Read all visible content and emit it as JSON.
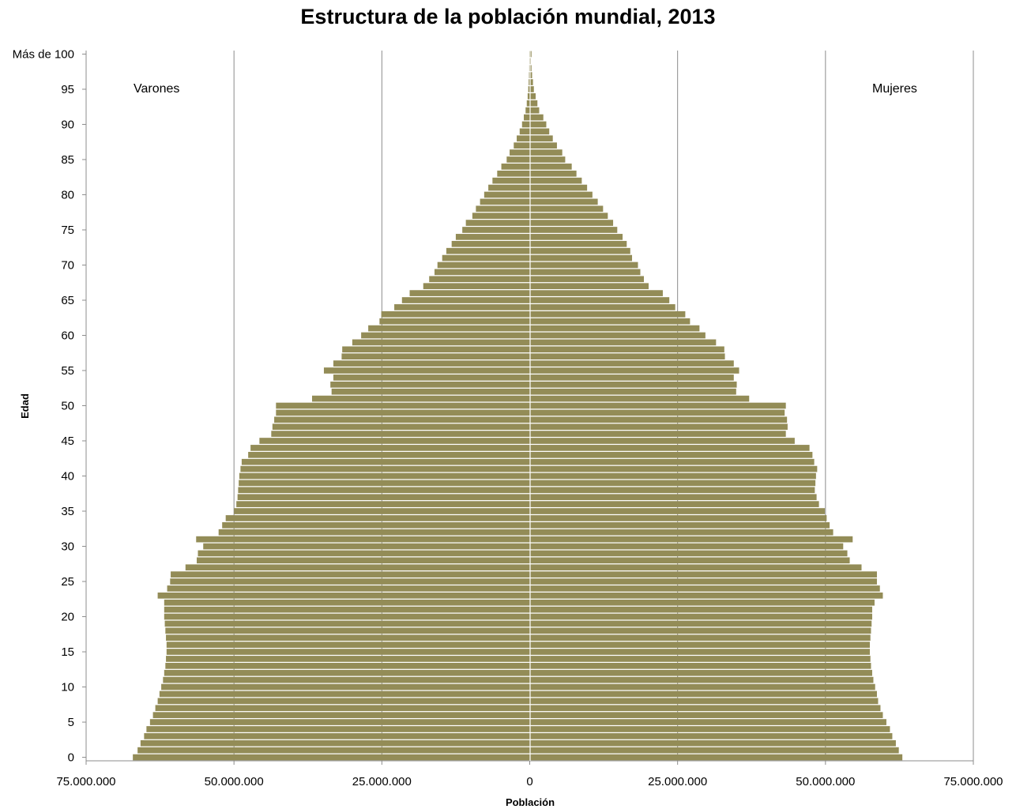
{
  "chart_data": {
    "type": "bar",
    "orientation": "horizontal-population-pyramid",
    "title": "Estructura de la población mundial, 2013",
    "xlabel": "Población",
    "ylabel": "Edad",
    "xlim": [
      -75000000,
      75000000
    ],
    "x_ticks": [
      "75.000.000",
      "50.000.000",
      "25.000.000",
      "0",
      "25.000.000",
      "50.000.000",
      "75.000.000"
    ],
    "y_ticks": [
      "0",
      "5",
      "10",
      "15",
      "20",
      "25",
      "30",
      "35",
      "40",
      "45",
      "50",
      "55",
      "60",
      "65",
      "70",
      "75",
      "80",
      "85",
      "90",
      "95",
      "Más de 100"
    ],
    "side_labels": {
      "left": "Varones",
      "right": "Mujeres"
    },
    "bar_color": "#938C57",
    "grid": "vertical",
    "ages": [
      0,
      1,
      2,
      3,
      4,
      5,
      6,
      7,
      8,
      9,
      10,
      11,
      12,
      13,
      14,
      15,
      16,
      17,
      18,
      19,
      20,
      21,
      22,
      23,
      24,
      25,
      26,
      27,
      28,
      29,
      30,
      31,
      32,
      33,
      34,
      35,
      36,
      37,
      38,
      39,
      40,
      41,
      42,
      43,
      44,
      45,
      46,
      47,
      48,
      49,
      50,
      51,
      52,
      53,
      54,
      55,
      56,
      57,
      58,
      59,
      60,
      61,
      62,
      63,
      64,
      65,
      66,
      67,
      68,
      69,
      70,
      71,
      72,
      73,
      74,
      75,
      76,
      77,
      78,
      79,
      80,
      81,
      82,
      83,
      84,
      85,
      86,
      87,
      88,
      89,
      90,
      91,
      92,
      93,
      94,
      95,
      96,
      97,
      98,
      99,
      100
    ],
    "series": [
      {
        "name": "Varones",
        "values": [
          67100000,
          66300000,
          65800000,
          65200000,
          64800000,
          64200000,
          63700000,
          63300000,
          62900000,
          62600000,
          62300000,
          62000000,
          61800000,
          61600000,
          61500000,
          61400000,
          61400000,
          61500000,
          61600000,
          61700000,
          61800000,
          61800000,
          61800000,
          62900000,
          61300000,
          60800000,
          60700000,
          58200000,
          56300000,
          56100000,
          55200000,
          56400000,
          52600000,
          52000000,
          51400000,
          50000000,
          49600000,
          49400000,
          49300000,
          49200000,
          49100000,
          48900000,
          48700000,
          47600000,
          47200000,
          45700000,
          43700000,
          43500000,
          43200000,
          42900000,
          42900000,
          36800000,
          33500000,
          33700000,
          33200000,
          34800000,
          33200000,
          31800000,
          31700000,
          30000000,
          28500000,
          27300000,
          25400000,
          25100000,
          22900000,
          21600000,
          20300000,
          18000000,
          17000000,
          16100000,
          15600000,
          14800000,
          14100000,
          13200000,
          12500000,
          11400000,
          10800000,
          9700000,
          9100000,
          8400000,
          7700000,
          7000000,
          6300000,
          5500000,
          4800000,
          3900000,
          3400000,
          2700000,
          2200000,
          1700000,
          1300000,
          1000000,
          700000,
          500000,
          350000,
          250000,
          180000,
          120000,
          80000,
          50000,
          60000
        ]
      },
      {
        "name": "Mujeres",
        "values": [
          63000000,
          62400000,
          61900000,
          61300000,
          60900000,
          60300000,
          59700000,
          59300000,
          58900000,
          58700000,
          58400000,
          58100000,
          57900000,
          57700000,
          57600000,
          57500000,
          57500000,
          57600000,
          57700000,
          57800000,
          57900000,
          57900000,
          58300000,
          59700000,
          59200000,
          58700000,
          58700000,
          56100000,
          54100000,
          53700000,
          53000000,
          54600000,
          51300000,
          50700000,
          50200000,
          49900000,
          48900000,
          48500000,
          48200000,
          48300000,
          48400000,
          48600000,
          48100000,
          47800000,
          47300000,
          44800000,
          43300000,
          43600000,
          43500000,
          43100000,
          43300000,
          37100000,
          34900000,
          35000000,
          34500000,
          35400000,
          34500000,
          33000000,
          32900000,
          31500000,
          29700000,
          28700000,
          27100000,
          26300000,
          24600000,
          23600000,
          22500000,
          20100000,
          19300000,
          18700000,
          18300000,
          17300000,
          17000000,
          16400000,
          15700000,
          14800000,
          14100000,
          13200000,
          12400000,
          11500000,
          10600000,
          9700000,
          8800000,
          7900000,
          7100000,
          6000000,
          5500000,
          4600000,
          3900000,
          3300000,
          2800000,
          2300000,
          1600000,
          1300000,
          1000000,
          700000,
          550000,
          400000,
          300000,
          200000,
          300000
        ]
      }
    ]
  }
}
